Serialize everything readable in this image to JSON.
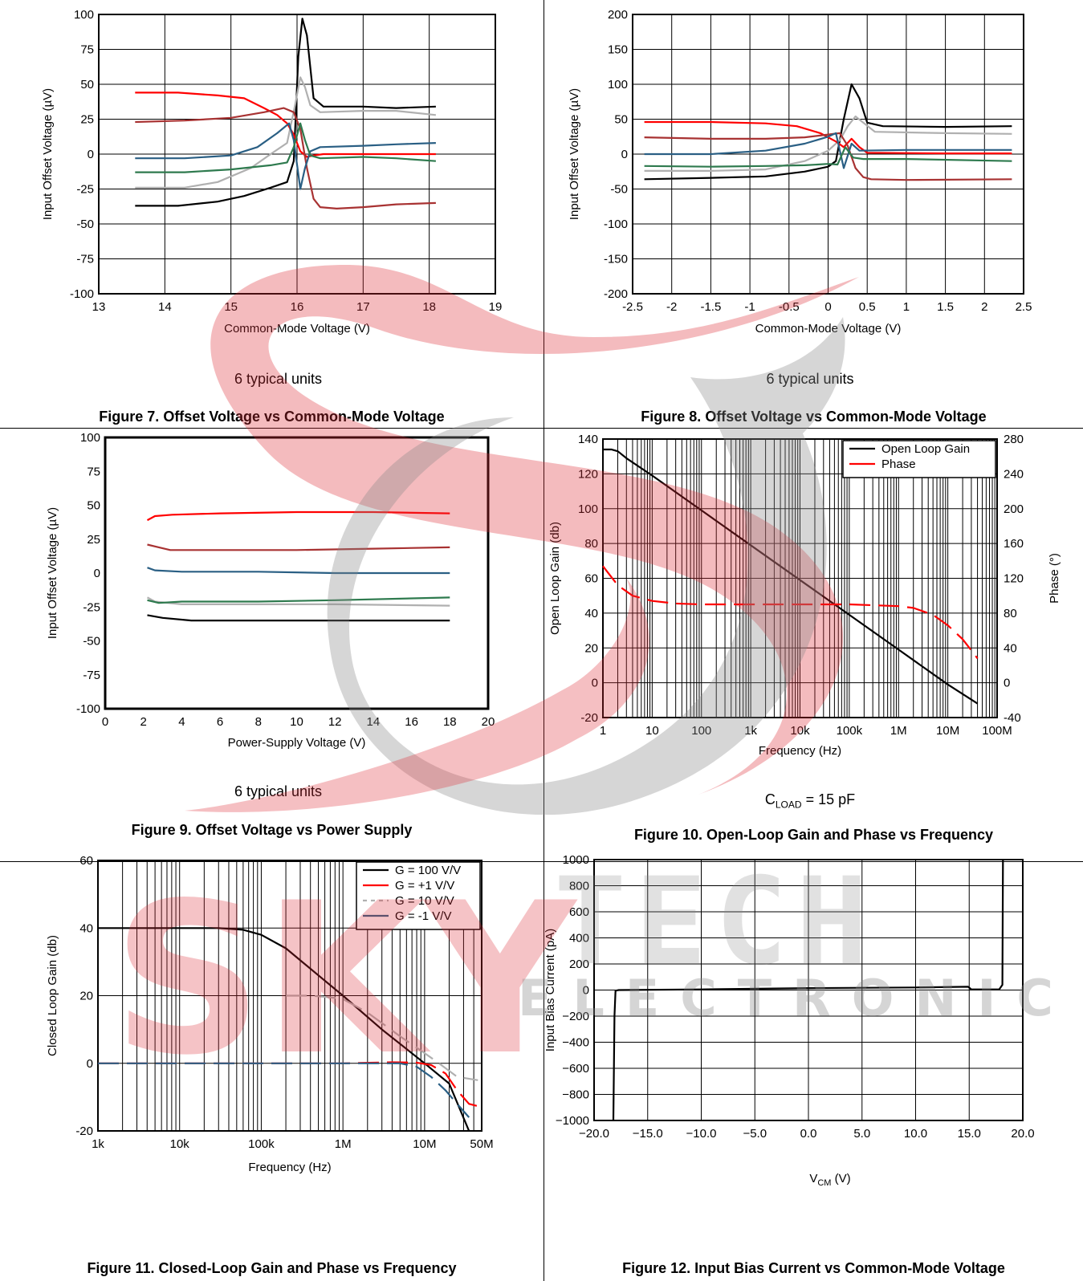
{
  "chart_data": [
    {
      "id": "fig7",
      "type": "line",
      "caption": "Figure 7. Offset Voltage vs Common-Mode Voltage",
      "note": "6 typical units",
      "xlabel": "Common-Mode Voltage (V)",
      "ylabel": "Input Offset Voltage (µV)",
      "xlim": [
        13,
        19
      ],
      "ylim": [
        -100,
        100
      ],
      "xticks": [
        13,
        14,
        15,
        16,
        17,
        18,
        19
      ],
      "xtick_labels": [
        "13",
        "14",
        "15",
        "16",
        "17",
        "18",
        "19"
      ],
      "yticks": [
        -100,
        -75,
        -50,
        -25,
        0,
        25,
        50,
        75,
        100
      ],
      "ytick_labels": [
        "-100",
        "-75",
        "-50",
        "-25",
        "0",
        "25",
        "50",
        "75",
        "100"
      ],
      "grid": true,
      "series": [
        {
          "color": "#000000",
          "x": [
            13.55,
            14.2,
            14.8,
            15.2,
            15.6,
            15.85,
            15.95,
            16.02,
            16.08,
            16.15,
            16.25,
            16.4,
            17,
            17.5,
            18.1
          ],
          "y": [
            -37,
            -37,
            -34,
            -30,
            -24,
            -20,
            -5,
            70,
            97,
            85,
            40,
            34,
            34,
            33,
            34
          ]
        },
        {
          "color": "#b0b0b0",
          "x": [
            13.55,
            14.3,
            14.8,
            15.3,
            15.6,
            15.85,
            15.97,
            16.05,
            16.12,
            16.2,
            16.35,
            17,
            17.5,
            18.1
          ],
          "y": [
            -24,
            -24,
            -20,
            -10,
            0,
            8,
            35,
            55,
            48,
            35,
            30,
            31,
            31,
            28
          ]
        },
        {
          "color": "#ff0000",
          "x": [
            13.55,
            14.2,
            14.8,
            15.2,
            15.5,
            15.7,
            15.85,
            15.95,
            16.05,
            16.15,
            16.25,
            16.4,
            17,
            17.5,
            18.1
          ],
          "y": [
            44,
            44,
            42,
            40,
            33,
            28,
            22,
            14,
            2,
            -2,
            -1,
            0,
            0,
            0,
            0
          ]
        },
        {
          "color": "#a83232",
          "x": [
            13.55,
            14.3,
            15,
            15.5,
            15.8,
            15.95,
            16.05,
            16.15,
            16.25,
            16.35,
            16.6,
            17,
            17.5,
            18.1
          ],
          "y": [
            23,
            24,
            26,
            30,
            33,
            30,
            18,
            -10,
            -32,
            -38,
            -39,
            -38,
            -36,
            -35
          ]
        },
        {
          "color": "#2a5f84",
          "x": [
            13.55,
            14.3,
            15,
            15.4,
            15.7,
            15.88,
            15.95,
            16.05,
            16.12,
            16.2,
            16.35,
            17,
            17.5,
            18.1
          ],
          "y": [
            -3,
            -3,
            -1,
            5,
            15,
            22,
            10,
            -25,
            -10,
            2,
            5,
            6,
            7,
            8
          ]
        },
        {
          "color": "#2e7a4e",
          "x": [
            13.55,
            14.3,
            15,
            15.6,
            15.85,
            15.95,
            16.05,
            16.12,
            16.2,
            16.35,
            17,
            17.5,
            18.1
          ],
          "y": [
            -13,
            -13,
            -11,
            -8,
            -6,
            5,
            22,
            10,
            -1,
            -3,
            -2,
            -3,
            -5
          ]
        }
      ]
    },
    {
      "id": "fig8",
      "type": "line",
      "caption": "Figure 8. Offset Voltage vs Common-Mode Voltage",
      "note": "6 typical units",
      "xlabel": "Common-Mode Voltage (V)",
      "ylabel": "Input Offset Voltage (µV)",
      "xlim": [
        -2.5,
        2.5
      ],
      "ylim": [
        -200,
        200
      ],
      "xticks": [
        -2.5,
        -2,
        -1.5,
        -1,
        -0.5,
        0,
        0.5,
        1,
        1.5,
        2,
        2.5
      ],
      "xtick_labels": [
        "-2.5",
        "-2",
        "-1.5",
        "-1",
        "-0.5",
        "0",
        "0.5",
        "1",
        "1.5",
        "2",
        "2.5"
      ],
      "yticks": [
        -200,
        -150,
        -100,
        -50,
        0,
        50,
        100,
        150,
        200
      ],
      "ytick_labels": [
        "-200",
        "-150",
        "-100",
        "-50",
        "0",
        "50",
        "100",
        "150",
        "200"
      ],
      "grid": true,
      "series": [
        {
          "color": "#000000",
          "x": [
            -2.35,
            -1.5,
            -0.8,
            -0.3,
            0,
            0.1,
            0.2,
            0.3,
            0.4,
            0.5,
            0.7,
            1.5,
            2.35
          ],
          "y": [
            -36,
            -34,
            -32,
            -25,
            -18,
            -10,
            50,
            100,
            80,
            45,
            40,
            39,
            40
          ]
        },
        {
          "color": "#b0b0b0",
          "x": [
            -2.35,
            -1.5,
            -0.8,
            -0.3,
            0,
            0.15,
            0.25,
            0.35,
            0.45,
            0.6,
            1.5,
            2.35
          ],
          "y": [
            -24,
            -24,
            -22,
            -10,
            5,
            20,
            40,
            54,
            45,
            32,
            30,
            29
          ]
        },
        {
          "color": "#ff0000",
          "x": [
            -2.35,
            -1.5,
            -0.8,
            -0.4,
            -0.1,
            0.1,
            0.2,
            0.3,
            0.4,
            0.5,
            1.5,
            2.35
          ],
          "y": [
            46,
            46,
            44,
            40,
            30,
            18,
            10,
            22,
            10,
            2,
            1,
            1
          ]
        },
        {
          "color": "#a83232",
          "x": [
            -2.35,
            -1.5,
            -0.8,
            -0.3,
            0,
            0.15,
            0.25,
            0.35,
            0.45,
            0.55,
            1,
            2.35
          ],
          "y": [
            24,
            22,
            22,
            24,
            28,
            30,
            12,
            -20,
            -33,
            -36,
            -37,
            -36
          ]
        },
        {
          "color": "#2a5f84",
          "x": [
            -2.35,
            -1.5,
            -0.8,
            -0.3,
            0,
            0.1,
            0.2,
            0.3,
            0.4,
            1,
            2.35
          ],
          "y": [
            0,
            0,
            5,
            15,
            25,
            30,
            -20,
            15,
            5,
            6,
            6
          ]
        },
        {
          "color": "#2e7a4e",
          "x": [
            -2.35,
            -1.5,
            -0.8,
            -0.3,
            0,
            0.12,
            0.22,
            0.32,
            0.45,
            1,
            2.35
          ],
          "y": [
            -17,
            -18,
            -17,
            -16,
            -14,
            -15,
            10,
            -5,
            -7,
            -7,
            -10
          ]
        }
      ]
    },
    {
      "id": "fig9",
      "type": "line",
      "caption": "Figure 9. Offset Voltage vs Power Supply",
      "note": "6 typical units",
      "xlabel": "Power-Supply Voltage (V)",
      "ylabel": "Input Offset Voltage (µV)",
      "xlim": [
        0,
        20
      ],
      "ylim": [
        -100,
        100
      ],
      "xticks": [
        0,
        2,
        4,
        6,
        8,
        10,
        12,
        14,
        16,
        18,
        20
      ],
      "xtick_labels": [
        "0",
        "2",
        "4",
        "6",
        "8",
        "10",
        "12",
        "14",
        "16",
        "18",
        "20"
      ],
      "yticks": [
        -100,
        -75,
        -50,
        -25,
        0,
        25,
        50,
        75,
        100
      ],
      "ytick_labels": [
        "-100",
        "-75",
        "-50",
        "-25",
        "0",
        "25",
        "50",
        "75",
        "100"
      ],
      "grid": false,
      "series": [
        {
          "color": "#ff0000",
          "x": [
            2.2,
            2.6,
            3.5,
            6,
            10,
            14,
            18
          ],
          "y": [
            39,
            42,
            43,
            44,
            45,
            45,
            44
          ]
        },
        {
          "color": "#a83232",
          "x": [
            2.2,
            2.8,
            3.4,
            6,
            10,
            14,
            18
          ],
          "y": [
            21,
            19,
            17,
            17,
            17,
            18,
            19
          ]
        },
        {
          "color": "#2a5f84",
          "x": [
            2.2,
            2.6,
            4,
            8,
            12,
            18
          ],
          "y": [
            4,
            2,
            1,
            1,
            0,
            0
          ]
        },
        {
          "color": "#b0b0b0",
          "x": [
            2.2,
            2.6,
            4,
            8,
            12,
            18
          ],
          "y": [
            -18,
            -21,
            -23,
            -23,
            -23,
            -24
          ]
        },
        {
          "color": "#2e7a4e",
          "x": [
            2.2,
            2.8,
            4,
            8,
            12,
            18
          ],
          "y": [
            -20,
            -22,
            -21,
            -21,
            -20,
            -18
          ]
        },
        {
          "color": "#000000",
          "x": [
            2.2,
            3,
            4.5,
            6,
            10,
            14,
            18
          ],
          "y": [
            -31,
            -33,
            -35,
            -35,
            -35,
            -35,
            -35
          ]
        }
      ]
    },
    {
      "id": "fig10",
      "type": "line",
      "caption": "Figure 10. Open-Loop Gain and Phase vs Frequency",
      "note": {
        "prefix": "C",
        "sub": "LOAD",
        "suffix": " = 15 pF"
      },
      "xlabel": "Frequency (Hz)",
      "ylabel": "Open Loop Gain (db)",
      "y2label": "Phase (°)",
      "xscale": "log",
      "xlim": [
        1,
        100000000
      ],
      "ylim": [
        -20,
        140
      ],
      "y2lim": [
        -40,
        280
      ],
      "xticks": [
        1,
        10,
        100,
        1000,
        10000,
        100000,
        1000000,
        10000000,
        100000000
      ],
      "xtick_labels": [
        "1",
        "10",
        "100",
        "1k",
        "10k",
        "100k",
        "1M",
        "10M",
        "100M"
      ],
      "yticks": [
        -20,
        0,
        20,
        40,
        60,
        80,
        100,
        120,
        140
      ],
      "ytick_labels": [
        "-20",
        "0",
        "20",
        "40",
        "60",
        "80",
        "100",
        "120",
        "140"
      ],
      "y2ticks": [
        -40,
        0,
        40,
        80,
        120,
        160,
        200,
        240,
        280
      ],
      "y2tick_labels": [
        "-40",
        "0",
        "40",
        "80",
        "120",
        "160",
        "200",
        "240",
        "280"
      ],
      "grid": true,
      "legend": {
        "position": "top-right",
        "entries": [
          {
            "label": "Open Loop Gain",
            "color": "#000000",
            "dash": false
          },
          {
            "label": "Phase",
            "color": "#ff0000",
            "dash": false
          }
        ]
      },
      "series": [
        {
          "name": "Open Loop Gain",
          "axis": "left",
          "color": "#000000",
          "dash": false,
          "x": [
            1,
            1.5,
            2,
            3,
            10,
            100,
            1000,
            10000,
            100000,
            1000000,
            10000000,
            40000000
          ],
          "y": [
            134,
            134,
            133,
            129,
            119,
            99,
            79,
            59,
            39,
            19,
            -1,
            -12
          ]
        },
        {
          "name": "Phase",
          "axis": "right",
          "color": "#ff0000",
          "dash": true,
          "x": [
            1,
            2,
            4,
            10,
            30,
            100,
            1000,
            10000,
            100000,
            1000000,
            2000000,
            5000000,
            10000000,
            20000000,
            40000000
          ],
          "y": [
            134,
            112,
            100,
            94,
            91,
            90,
            90,
            90,
            90,
            88,
            86,
            78,
            66,
            50,
            28
          ]
        }
      ]
    },
    {
      "id": "fig11",
      "type": "line",
      "caption": "Figure 11. Closed-Loop Gain and Phase vs Frequency",
      "xlabel": "Frequency (Hz)",
      "ylabel": "Closed Loop Gain (db)",
      "xscale": "log",
      "xlim": [
        1000,
        50000000
      ],
      "ylim": [
        -20,
        60
      ],
      "xticks": [
        1000,
        10000,
        100000,
        1000000,
        10000000,
        50000000
      ],
      "xtick_labels": [
        "1k",
        "10k",
        "100k",
        "1M",
        "10M",
        "50M"
      ],
      "yticks": [
        -20,
        0,
        20,
        40,
        60
      ],
      "ytick_labels": [
        "-20",
        "0",
        "20",
        "40",
        "60"
      ],
      "grid": true,
      "legend": {
        "position": "top-right",
        "entries": [
          {
            "label": "G = 100 V/V",
            "color": "#000000",
            "dash": false
          },
          {
            "label": "G = +1 V/V",
            "color": "#ff0000",
            "dash": false
          },
          {
            "label": "G = 10 V/V",
            "color": "#b0b0b0",
            "dash": true
          },
          {
            "label": "G = -1 V/V",
            "color": "#2a5f84",
            "dash": false
          }
        ]
      },
      "series": [
        {
          "name": "G = 100 V/V",
          "color": "#000000",
          "dash": false,
          "x": [
            1000,
            10000,
            30000,
            60000,
            100000,
            200000,
            500000,
            1000000,
            3000000,
            10000000,
            20000000,
            35000000
          ],
          "y": [
            40,
            40,
            40,
            39.5,
            38,
            34,
            26,
            20,
            10,
            0,
            -6,
            -20
          ]
        },
        {
          "name": "G = 10 V/V",
          "color": "#b0b0b0",
          "dash": true,
          "x": [
            200000,
            400000,
            700000,
            1000000,
            2000000,
            5000000,
            10000000,
            15000000,
            25000000,
            45000000
          ],
          "y": [
            20,
            20,
            19.5,
            19,
            15,
            8,
            3,
            0,
            -4,
            -5
          ]
        },
        {
          "name": "G = +1 V/V",
          "color": "#ff0000",
          "dash": true,
          "x": [
            1000,
            100000,
            1000000,
            4000000,
            8000000,
            12000000,
            18000000,
            25000000,
            35000000,
            50000000
          ],
          "y": [
            0,
            0,
            0,
            0.3,
            0.2,
            -0.5,
            -3,
            -8,
            -12,
            -13
          ]
        },
        {
          "name": "G = -1 V/V",
          "color": "#2a5f84",
          "dash": true,
          "x": [
            1000,
            100000,
            1000000,
            5000000,
            8000000,
            12000000,
            18000000,
            25000000,
            35000000
          ],
          "y": [
            0,
            0,
            0,
            0,
            -1,
            -4,
            -8,
            -12,
            -16
          ]
        }
      ]
    },
    {
      "id": "fig12",
      "type": "line",
      "caption": "Figure 12. Input Bias Current vs Common-Mode Voltage",
      "xlabel": {
        "prefix": "V",
        "sub": "CM",
        "suffix": " (V)"
      },
      "ylabel": "Input Bias Current (pA)",
      "xlim": [
        -20,
        20
      ],
      "ylim": [
        -1000,
        1000
      ],
      "xticks": [
        -20,
        -15,
        -10,
        -5,
        0,
        5,
        10,
        15,
        20
      ],
      "xtick_labels": [
        "−20.0",
        "−15.0",
        "−10.0",
        "−5.0",
        "0.0",
        "5.0",
        "10.0",
        "15.0",
        "20.0"
      ],
      "yticks": [
        -1000,
        -800,
        -600,
        -400,
        -200,
        0,
        200,
        400,
        600,
        800,
        1000
      ],
      "ytick_labels": [
        "−1000",
        "−800",
        "−600",
        "−400",
        "−200",
        "0",
        "200",
        "400",
        "600",
        "800",
        "1000"
      ],
      "grid": true,
      "series": [
        {
          "color": "#000000",
          "x": [
            -18.2,
            -18.1,
            -18,
            -17.7,
            -10,
            0,
            10,
            14.9,
            15.2,
            17.8,
            18.1,
            18.15
          ],
          "y": [
            -1000,
            -200,
            -5,
            0,
            5,
            15,
            20,
            25,
            5,
            5,
            40,
            1000
          ]
        }
      ]
    }
  ]
}
